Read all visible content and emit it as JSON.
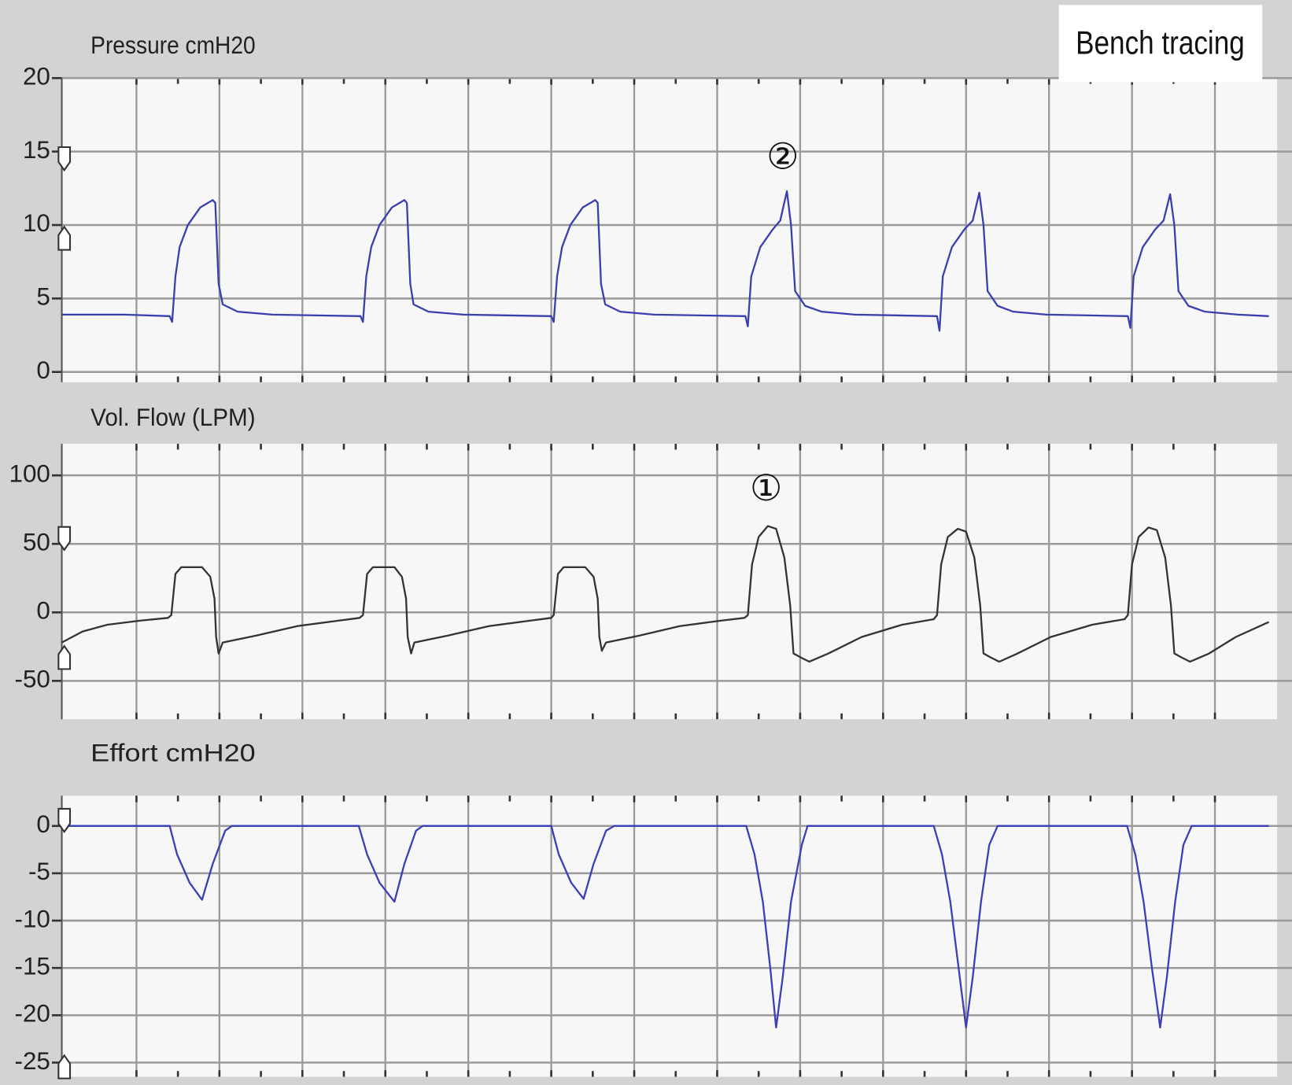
{
  "badge": "Bench tracing",
  "chart_data": [
    {
      "type": "line",
      "title": "Pressure cmH20",
      "ylim": [
        -0.7,
        20
      ],
      "yticks": [
        0,
        5,
        10,
        15,
        20
      ],
      "xlim": [
        0.1,
        14.75
      ],
      "xticks": [
        1,
        2,
        3,
        4,
        5,
        6,
        7,
        8,
        9,
        10,
        11,
        12,
        13,
        14
      ],
      "grid": true,
      "annotations": [
        {
          "text": "②",
          "x": 8.79,
          "y": 14.5
        }
      ],
      "series": [
        {
          "color": "#3a3fae",
          "x": [
            0.1,
            0.85,
            1.4,
            1.43,
            1.47,
            1.52,
            1.62,
            1.77,
            1.92,
            1.95,
            1.99,
            2.04,
            2.22,
            2.64,
            3.7,
            3.73,
            3.77,
            3.83,
            3.93,
            4.08,
            4.23,
            4.26,
            4.3,
            4.34,
            4.52,
            4.94,
            6.0,
            6.03,
            6.07,
            6.13,
            6.23,
            6.38,
            6.53,
            6.56,
            6.6,
            6.65,
            6.83,
            7.24,
            8.34,
            8.37,
            8.41,
            8.52,
            8.67,
            8.76,
            8.84,
            8.89,
            8.94,
            9.06,
            9.26,
            9.66,
            10.65,
            10.68,
            10.72,
            10.83,
            10.98,
            11.08,
            11.16,
            11.21,
            11.26,
            11.38,
            11.57,
            11.97,
            12.95,
            12.98,
            13.02,
            13.13,
            13.28,
            13.38,
            13.46,
            13.51,
            13.56,
            13.68,
            13.88,
            14.28,
            14.65
          ],
          "values": [
            3.9,
            3.9,
            3.8,
            3.4,
            6.5,
            8.5,
            10.0,
            11.2,
            11.7,
            11.5,
            6.0,
            4.6,
            4.1,
            3.9,
            3.8,
            3.4,
            6.5,
            8.5,
            10.0,
            11.2,
            11.7,
            11.5,
            6.0,
            4.6,
            4.1,
            3.9,
            3.8,
            3.4,
            6.5,
            8.5,
            10.0,
            11.2,
            11.7,
            11.5,
            6.0,
            4.6,
            4.1,
            3.9,
            3.8,
            3.1,
            6.5,
            8.5,
            9.7,
            10.3,
            12.3,
            10.0,
            5.5,
            4.5,
            4.1,
            3.9,
            3.8,
            2.8,
            6.5,
            8.5,
            9.7,
            10.3,
            12.2,
            10.0,
            5.5,
            4.5,
            4.1,
            3.9,
            3.8,
            3.0,
            6.5,
            8.5,
            9.7,
            10.3,
            12.1,
            10.0,
            5.5,
            4.5,
            4.1,
            3.9,
            3.8
          ]
        }
      ]
    },
    {
      "type": "line",
      "title": "Vol. Flow (LPM)",
      "ylim": [
        -78,
        123
      ],
      "yticks": [
        -50,
        0,
        50,
        100
      ],
      "xlim": [
        0.1,
        14.75
      ],
      "xticks": [
        1,
        2,
        3,
        4,
        5,
        6,
        7,
        8,
        9,
        10,
        11,
        12,
        13,
        14
      ],
      "grid": true,
      "annotations": [
        {
          "text": "①",
          "x": 8.59,
          "y": 89
        }
      ],
      "series": [
        {
          "color": "#333333",
          "x": [
            0.1,
            0.35,
            0.65,
            1.05,
            1.38,
            1.42,
            1.47,
            1.54,
            1.79,
            1.89,
            1.94,
            1.96,
            1.99,
            2.04,
            2.44,
            2.94,
            3.44,
            3.69,
            3.73,
            3.78,
            3.85,
            4.11,
            4.2,
            4.25,
            4.27,
            4.31,
            4.35,
            4.75,
            5.25,
            5.75,
            6.0,
            6.03,
            6.08,
            6.15,
            6.41,
            6.51,
            6.56,
            6.58,
            6.61,
            6.66,
            7.06,
            7.55,
            8.05,
            8.33,
            8.37,
            8.42,
            8.5,
            8.61,
            8.71,
            8.81,
            8.88,
            8.92,
            9.01,
            9.11,
            9.34,
            9.74,
            10.23,
            10.61,
            10.65,
            10.7,
            10.78,
            10.9,
            11.0,
            11.1,
            11.17,
            11.21,
            11.3,
            11.4,
            11.62,
            12.02,
            12.52,
            12.91,
            12.95,
            13.0,
            13.08,
            13.2,
            13.3,
            13.4,
            13.47,
            13.51,
            13.6,
            13.7,
            13.93,
            14.25,
            14.65
          ],
          "values": [
            -22,
            -14,
            -9,
            -6,
            -4,
            -2,
            28,
            33,
            33,
            26,
            10,
            -18,
            -30,
            -22,
            -17,
            -10,
            -6,
            -4,
            -2,
            28,
            33,
            33,
            26,
            10,
            -18,
            -30,
            -22,
            -17,
            -10,
            -6,
            -4,
            -2,
            28,
            33,
            33,
            26,
            10,
            -18,
            -28,
            -22,
            -17,
            -10,
            -6,
            -4,
            -2,
            35,
            55,
            63,
            61,
            40,
            5,
            -30,
            -33,
            -36,
            -30,
            -18,
            -9,
            -5,
            -2,
            35,
            55,
            61,
            59,
            40,
            5,
            -30,
            -33,
            -36,
            -30,
            -18,
            -9,
            -5,
            -2,
            35,
            55,
            62,
            60,
            40,
            5,
            -30,
            -33,
            -36,
            -30,
            -18,
            -7
          ]
        }
      ]
    },
    {
      "type": "line",
      "title": "Effort cmH20",
      "ylim": [
        -26.5,
        3.2
      ],
      "yticks": [
        -25,
        -20,
        -15,
        -10,
        -5,
        0
      ],
      "xlim": [
        0.1,
        14.75
      ],
      "xticks": [
        1,
        2,
        3,
        4,
        5,
        6,
        7,
        8,
        9,
        10,
        11,
        12,
        13,
        14
      ],
      "grid": true,
      "series": [
        {
          "color": "#3a3fb8",
          "x": [
            0.1,
            1.4,
            1.49,
            1.64,
            1.79,
            1.92,
            2.07,
            2.15,
            3.68,
            3.78,
            3.93,
            4.11,
            4.23,
            4.37,
            4.45,
            6.0,
            6.09,
            6.24,
            6.39,
            6.51,
            6.66,
            6.76,
            8.35,
            8.45,
            8.55,
            8.64,
            8.71,
            8.79,
            8.89,
            9.02,
            9.09,
            10.61,
            10.71,
            10.81,
            10.91,
            11.0,
            11.08,
            11.18,
            11.28,
            11.38,
            12.94,
            13.04,
            13.14,
            13.24,
            13.34,
            13.42,
            13.52,
            13.62,
            13.72,
            14.65
          ],
          "values": [
            0,
            0,
            -3,
            -6,
            -7.8,
            -4,
            -0.5,
            0,
            0,
            -3,
            -6,
            -8,
            -4,
            -0.5,
            0,
            0,
            -3,
            -6,
            -7.7,
            -4,
            -0.5,
            0,
            0,
            -3,
            -8,
            -15,
            -21.3,
            -16,
            -8,
            -2,
            0,
            0,
            -3,
            -8,
            -15,
            -21.3,
            -16,
            -8,
            -2,
            0,
            0,
            -3,
            -8,
            -15,
            -21.3,
            -16,
            -8,
            -2,
            0,
            0
          ]
        }
      ]
    }
  ]
}
